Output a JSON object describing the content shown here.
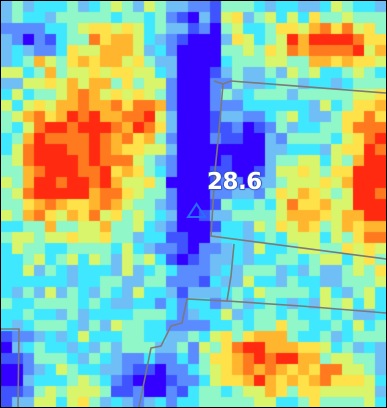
{
  "map": {
    "reading": {
      "value": "28.6",
      "marker": "triangle-marker-icon",
      "marker_color": "#2a6cff"
    },
    "colormap": [
      "#3300ff",
      "#3f54ff",
      "#5a8cff",
      "#6fbef5",
      "#3fe8ff",
      "#8ff7c8",
      "#d8f56b",
      "#ffe24a",
      "#ffb52e",
      "#ff7a1f",
      "#ff2a10"
    ],
    "boundary_color": "#7a7a7a",
    "frame_color": "#000000"
  }
}
